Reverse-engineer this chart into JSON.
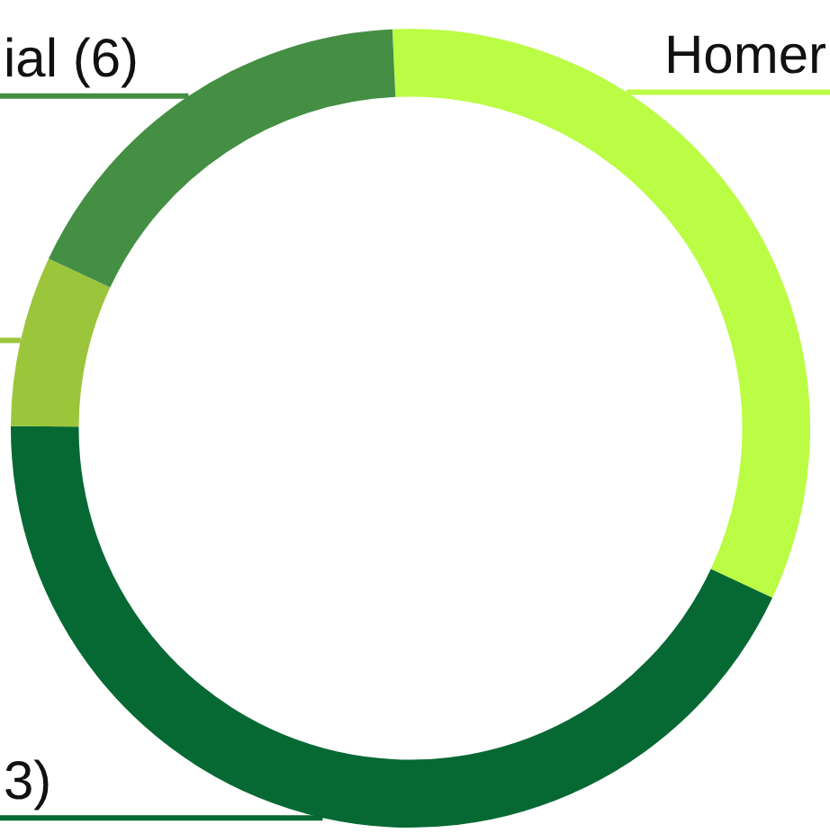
{
  "chart_data": {
    "type": "donut",
    "categories": [
      "Homer",
      "3)",
      null,
      "ial (6)"
    ],
    "values": [
      32.7,
      43.1,
      6.9,
      17.3
    ],
    "colors": [
      "#bbfc44",
      "#066933",
      "#9bc63b",
      "#448f43"
    ],
    "legend": false
  }
}
